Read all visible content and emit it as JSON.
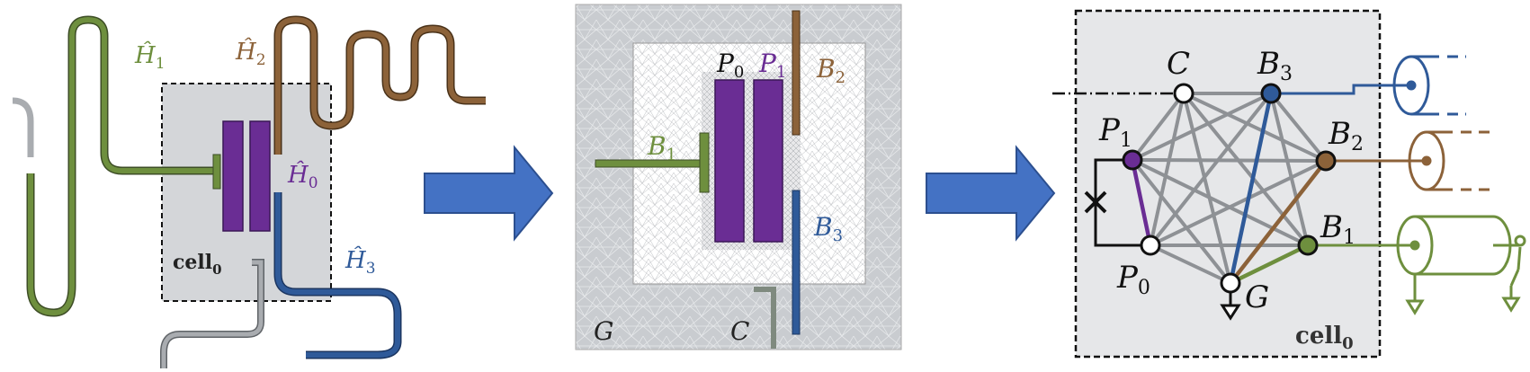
{
  "colors": {
    "green": "#6e8f3e",
    "brown": "#8c6239",
    "purple": "#6a2d94",
    "blue": "#2f5a99",
    "gray": "#a9acb0",
    "cell_bg": "#d4d6d9",
    "arrow": "#4472c4",
    "mesh_bg": "#c9ccd0"
  },
  "panel_layout": {
    "h1": "Ĥ",
    "h1_sub": "1",
    "h2": "Ĥ",
    "h2_sub": "2",
    "h0": "Ĥ",
    "h0_sub": "0",
    "h3": "Ĥ",
    "h3_sub": "3",
    "cell": "cell",
    "cell_sub": "0"
  },
  "panel_mesh": {
    "p0": "P",
    "p0_sub": "0",
    "p1": "P",
    "p1_sub": "1",
    "b1": "B",
    "b1_sub": "1",
    "b2": "B",
    "b2_sub": "2",
    "b3": "B",
    "b3_sub": "3",
    "g": "G",
    "c": "C"
  },
  "panel_graph": {
    "c": "C",
    "b3": "B",
    "b3_sub": "3",
    "p1": "P",
    "p1_sub": "1",
    "b2": "B",
    "b2_sub": "2",
    "b1": "B",
    "b1_sub": "1",
    "p0": "P",
    "p0_sub": "0",
    "g": "G",
    "cell": "cell",
    "cell_sub": "0"
  }
}
